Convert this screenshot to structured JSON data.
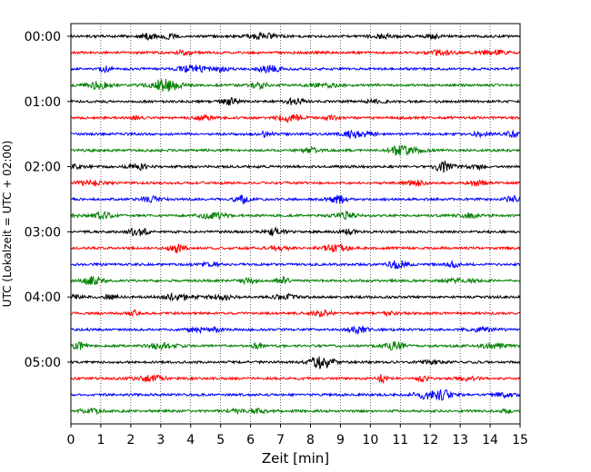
{
  "chart_data": {
    "type": "line",
    "chart_kind": "seismogram helicorder (dayplot)",
    "xlabel": "Zeit  [min]",
    "ylabel": "UTC (Lokalzeit = UTC + 02:00)",
    "xlim": [
      0,
      15
    ],
    "x_ticks": [
      "0",
      "1",
      "2",
      "3",
      "4",
      "5",
      "6",
      "7",
      "8",
      "9",
      "10",
      "11",
      "12",
      "13",
      "14",
      "15"
    ],
    "y_tick_labels": [
      "00:00",
      "01:00",
      "02:00",
      "03:00",
      "04:00",
      "05:00"
    ],
    "grid": "vertical dotted at each minute",
    "traces_per_hour": 4,
    "minutes_per_trace": 15,
    "trace_colors": [
      "#000000",
      "#ff0000",
      "#0000ff",
      "#008000"
    ],
    "series": [
      {
        "start": "00:00"
      },
      {
        "start": "00:15"
      },
      {
        "start": "00:30"
      },
      {
        "start": "00:45"
      },
      {
        "start": "01:00"
      },
      {
        "start": "01:15"
      },
      {
        "start": "01:30"
      },
      {
        "start": "01:45"
      },
      {
        "start": "02:00"
      },
      {
        "start": "02:15"
      },
      {
        "start": "02:30"
      },
      {
        "start": "02:45"
      },
      {
        "start": "03:00"
      },
      {
        "start": "03:15"
      },
      {
        "start": "03:30"
      },
      {
        "start": "03:45"
      },
      {
        "start": "04:00"
      },
      {
        "start": "04:15"
      },
      {
        "start": "04:30"
      },
      {
        "start": "04:45"
      },
      {
        "start": "05:00"
      },
      {
        "start": "05:15"
      },
      {
        "start": "05:30"
      },
      {
        "start": "05:45"
      }
    ]
  }
}
